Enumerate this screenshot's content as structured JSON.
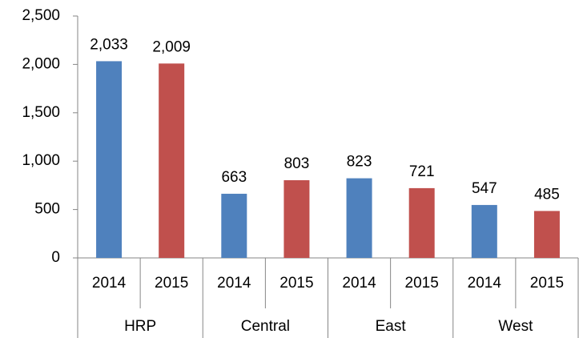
{
  "chart_data": {
    "type": "bar",
    "categories": [
      "HRP",
      "Central",
      "East",
      "West"
    ],
    "series": [
      {
        "name": "2014",
        "color": "#4f81bd",
        "values": [
          2033,
          663,
          823,
          547
        ],
        "value_labels": [
          "2,033",
          "663",
          "823",
          "547"
        ]
      },
      {
        "name": "2015",
        "color": "#c0504d",
        "values": [
          2009,
          803,
          721,
          485
        ],
        "value_labels": [
          "2,009",
          "803",
          "721",
          "485"
        ]
      }
    ],
    "ylim": [
      0,
      2500
    ],
    "yticks": [
      0,
      {
        "value": 500,
        "label": "500"
      },
      {
        "value": 1000,
        "label": "1,000"
      },
      {
        "value": 1500,
        "label": "1,500"
      },
      {
        "value": 2000,
        "label": "2,000"
      },
      {
        "value": 2500,
        "label": "2,500"
      }
    ],
    "grid": false
  }
}
